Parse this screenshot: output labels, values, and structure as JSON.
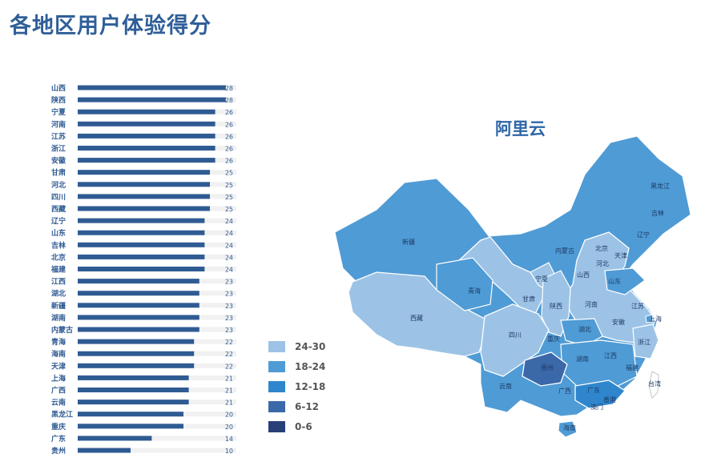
{
  "page": {
    "title": "各地区用户体验得分"
  },
  "map": {
    "title": "阿里云",
    "labels": [
      "新疆",
      "西藏",
      "青海",
      "甘肃",
      "宁夏",
      "内蒙古",
      "黑龙江",
      "吉林",
      "辽宁",
      "北京",
      "天津",
      "河北",
      "山西",
      "山东",
      "陕西",
      "河南",
      "江苏",
      "安徽",
      "上海",
      "四川",
      "湖北",
      "重庆",
      "浙江",
      "贵州",
      "湖南",
      "江西",
      "福建",
      "台湾",
      "云南",
      "广西",
      "广东",
      "香港",
      "澳门",
      "海南"
    ]
  },
  "legend": {
    "items": [
      {
        "label": "24-30",
        "color": "#9cc3e6"
      },
      {
        "label": "18-24",
        "color": "#4f9bd5"
      },
      {
        "label": "12-18",
        "color": "#2f86cc"
      },
      {
        "label": "6-12",
        "color": "#3a68a8"
      },
      {
        "label": "0-6",
        "color": "#283f78"
      }
    ]
  },
  "chart_data": {
    "type": "bar",
    "orientation": "horizontal",
    "title": "各地区用户体验得分",
    "categories": [
      "山西",
      "陕西",
      "宁夏",
      "河南",
      "江苏",
      "浙江",
      "安徽",
      "甘肃",
      "河北",
      "四川",
      "西藏",
      "辽宁",
      "山东",
      "吉林",
      "北京",
      "福建",
      "江西",
      "湖北",
      "新疆",
      "湖南",
      "内蒙古",
      "青海",
      "海南",
      "天津",
      "上海",
      "广西",
      "云南",
      "黑龙江",
      "重庆",
      "广东",
      "贵州"
    ],
    "values": [
      28,
      28,
      26,
      26,
      26,
      26,
      26,
      25,
      25,
      25,
      25,
      24,
      24,
      24,
      24,
      24,
      23,
      23,
      23,
      23,
      23,
      22,
      22,
      22,
      21,
      21,
      21,
      20,
      20,
      14,
      10
    ],
    "xlim": [
      0,
      30
    ],
    "bar_color": "#2f5b93",
    "track_color": "#f1f1f1"
  }
}
